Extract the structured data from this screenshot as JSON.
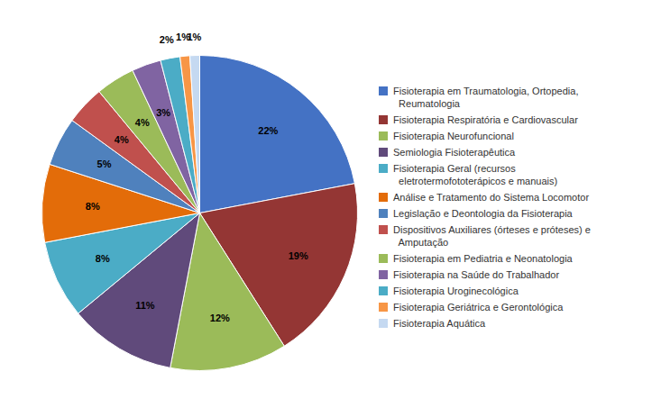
{
  "chart_data": {
    "type": "pie",
    "categories": [
      "Fisioterapia em Traumatologia, Ortopedia,\n  Reumatologia",
      "Fisioterapia Respiratória e Cardiovascular",
      "Fisioterapia Neurofuncional",
      "Semiologia Fisioterapêutica",
      "Fisioterapia Geral (recursos\n  eletrotermofototerápicos e manuais)",
      "Análise e Tratamento do Sistema Locomotor",
      "Legislação e Deontologia da Fisioterapia",
      "Dispositivos Auxiliares (órteses e próteses) e\n  Amputação",
      "Fisioterapia em Pediatria e Neonatologia",
      "Fisioterapia na Saúde do Trabalhador",
      "Fisioterapia Uroginecológica",
      "Fisioterapia Geriátrica e Gerontológica",
      "Fisioterapia Aquática"
    ],
    "values": [
      22,
      19,
      12,
      11,
      8,
      8,
      5,
      4,
      4,
      3,
      2,
      1,
      1
    ],
    "value_labels": [
      "22%",
      "19%",
      "12%",
      "11%",
      "8%",
      "8%",
      "5%",
      "4%",
      "4%",
      "3%",
      "2%",
      "1%",
      "1%"
    ],
    "data_labels": true,
    "colors": [
      "#4472C4",
      "#943634",
      "#9BBB59",
      "#604A7B",
      "#4BACC6",
      "#E36C09",
      "#4F81BD",
      "#C0504D",
      "#9BBB59",
      "#8064A2",
      "#4BACC6",
      "#F79646",
      "#C5D9F1"
    ],
    "legend": "right"
  }
}
